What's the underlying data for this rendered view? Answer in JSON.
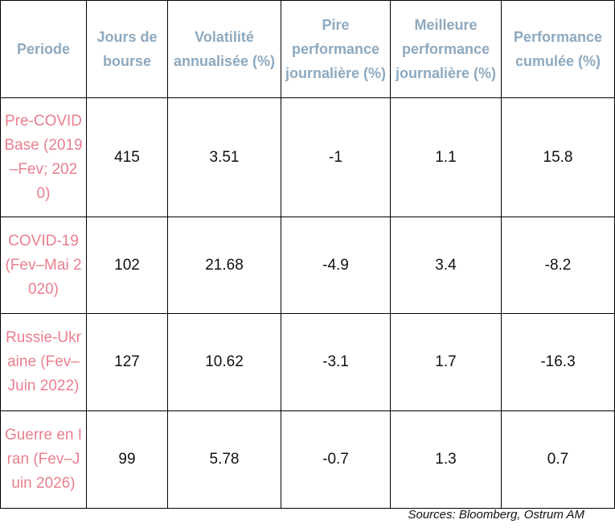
{
  "table": {
    "headers": [
      "Periode",
      "Jours de bourse",
      "Volatilité annualisée (%)",
      "Pire performance journalière (%)",
      "Meilleure performance journalière (%)",
      "Performance cumulée (%)"
    ],
    "rows": [
      {
        "period": "Pre-COVID Base (2019–Fev; 2020)",
        "jours": "415",
        "volatilite": "3.51",
        "pire": "-1",
        "meilleure": "1.1",
        "cumulee": "15.8"
      },
      {
        "period": "COVID-19 (Fev–Mai 2020)",
        "jours": "102",
        "volatilite": "21.68",
        "pire": "-4.9",
        "meilleure": "3.4",
        "cumulee": "-8.2"
      },
      {
        "period": "Russie-Ukraine (Fev–Juin 2022)",
        "jours": "127",
        "volatilite": "10.62",
        "pire": "-3.1",
        "meilleure": "1.7",
        "cumulee": "-16.3"
      },
      {
        "period": "Guerre en Iran (Fev–Juin 2026)",
        "jours": "99",
        "volatilite": "5.78",
        "pire": "-0.7",
        "meilleure": "1.3",
        "cumulee": "0.7"
      }
    ]
  },
  "source": "Sources: Bloomberg, Ostrum AM",
  "colors": {
    "header_text": "#8ea9bf",
    "period_text": "#e97f8e",
    "body_text": "#111111",
    "border": "#000000"
  }
}
